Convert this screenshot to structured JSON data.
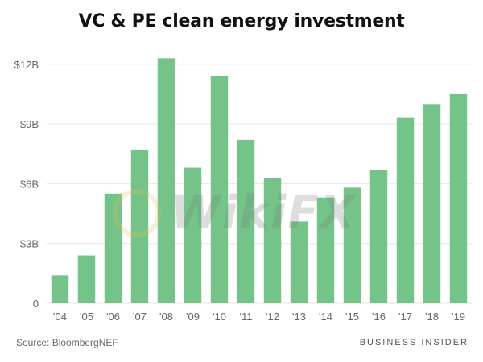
{
  "chart_data": {
    "type": "bar",
    "title": "VC & PE clean energy investment",
    "xlabel": "",
    "ylabel": "",
    "categories": [
      "'04",
      "'05",
      "'06",
      "'07",
      "'08",
      "'09",
      "'10",
      "'11",
      "'12",
      "'13",
      "'14",
      "'15",
      "'16",
      "'17",
      "'18",
      "'19"
    ],
    "values": [
      1.4,
      2.4,
      5.5,
      7.7,
      12.3,
      6.8,
      11.4,
      8.2,
      6.3,
      4.1,
      5.3,
      5.8,
      6.7,
      9.3,
      10.0,
      10.5
    ],
    "ylim": [
      0,
      13
    ],
    "yticks": [
      0,
      3,
      6,
      9,
      12
    ],
    "ytick_labels": [
      "0",
      "$3B",
      "$6B",
      "$9B",
      "$12B"
    ],
    "grid": true,
    "bar_color": "#74c48a"
  },
  "footer": {
    "source": "Source: BloombergNEF",
    "publisher": "BUSINESS INSIDER"
  },
  "watermark": {
    "text": "WikiFX"
  }
}
